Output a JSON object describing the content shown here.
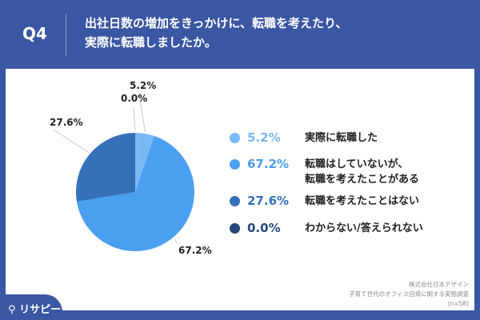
{
  "header": {
    "q": "Q4",
    "title": "出社日数の増加をきっかけに、転職を考えたり、\n実際に転職しましたか。"
  },
  "chart_data": {
    "type": "pie",
    "categories": [
      "実際に転職した",
      "転職はしていないが、\n転職を考えたことがある",
      "転職を考えたことはない",
      "わからない/答えられない"
    ],
    "values": [
      5.2,
      67.2,
      27.6,
      0.0
    ],
    "labels": [
      "5.2%",
      "67.2%",
      "27.6%",
      "0.0%"
    ],
    "colors": [
      "#7ab8f5",
      "#4a9ff0",
      "#3670b8",
      "#27487a"
    ],
    "legend": "right"
  },
  "source": {
    "company": "株式会社日本デザイン",
    "survey": "子育て世代のオフィス回帰に関する実態調査",
    "n": "(n=58)"
  },
  "logo": "リサピー"
}
